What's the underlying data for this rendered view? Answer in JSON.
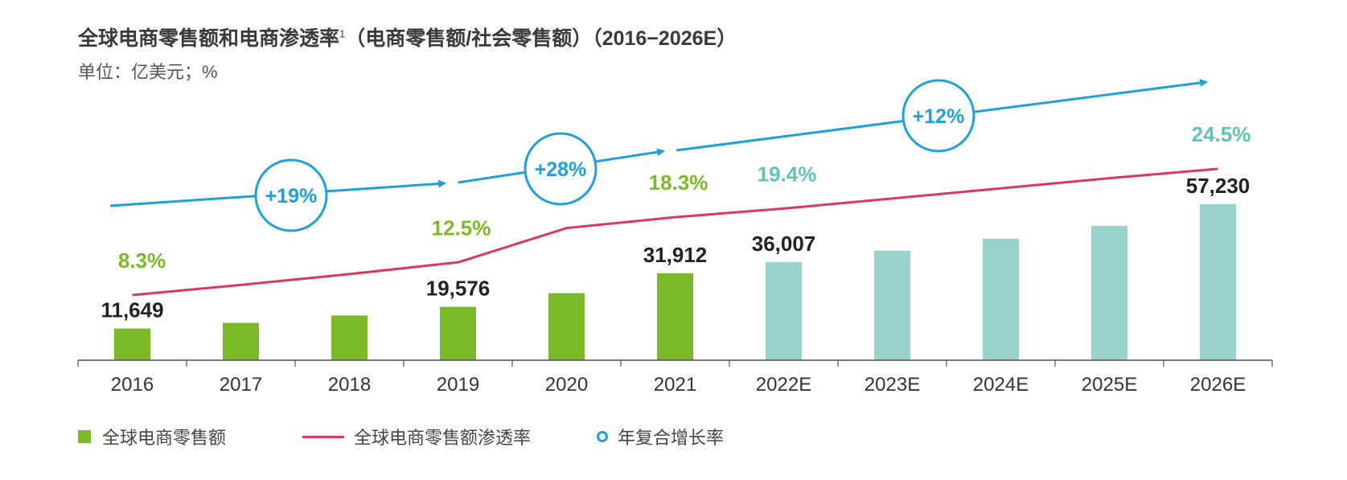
{
  "header": {
    "title": "全球电商零售额和电商渗透率",
    "title_sup": "1",
    "title_suffix": "（电商零售额/社会零售额）（2016−2026E）",
    "unit": "单位：亿美元；%"
  },
  "legend": {
    "bar_label": "全球电商零售额",
    "line_label": "全球电商零售额渗透率",
    "circle_label": "年复合增长率"
  },
  "colors": {
    "bar_actual": "#7aba28",
    "bar_estimate": "#98d2cb",
    "line": "#d83a5a",
    "cagr": "#1ea0d8",
    "pct_actual": "#7aba28",
    "pct_estimate": "#5fc4b4"
  },
  "chart_data": {
    "type": "bar",
    "categories": [
      "2016",
      "2017",
      "2018",
      "2019",
      "2020",
      "2021",
      "2022E",
      "2023E",
      "2024E",
      "2025E",
      "2026E"
    ],
    "series": [
      {
        "name": "全球电商零售额",
        "values": [
          11649,
          13700,
          16400,
          19576,
          24600,
          31912,
          36007,
          40200,
          44600,
          49300,
          57230
        ],
        "labels": [
          "11,649",
          "",
          "",
          "19,576",
          "",
          "31,912",
          "36,007",
          "",
          "",
          "",
          "57,230"
        ],
        "estimate_from_index": 6
      },
      {
        "name": "全球电商零售额渗透率",
        "values": [
          8.3,
          9.6,
          11.0,
          12.5,
          16.9,
          18.3,
          19.4,
          20.7,
          22.0,
          23.3,
          24.5
        ],
        "labels": [
          "8.3%",
          "",
          "",
          "12.5%",
          "",
          "18.3%",
          "19.4%",
          "",
          "",
          "",
          "24.5%"
        ]
      }
    ],
    "cagr": [
      {
        "label": "+19%",
        "from": "2016",
        "to": "2019"
      },
      {
        "label": "+28%",
        "from": "2019",
        "to": "2021"
      },
      {
        "label": "+12%",
        "from": "2021",
        "to": "2026E"
      }
    ],
    "ylim": [
      0,
      70000
    ],
    "ylim_pct": [
      0,
      40
    ],
    "grid": false,
    "legend_position": "bottom-left"
  }
}
